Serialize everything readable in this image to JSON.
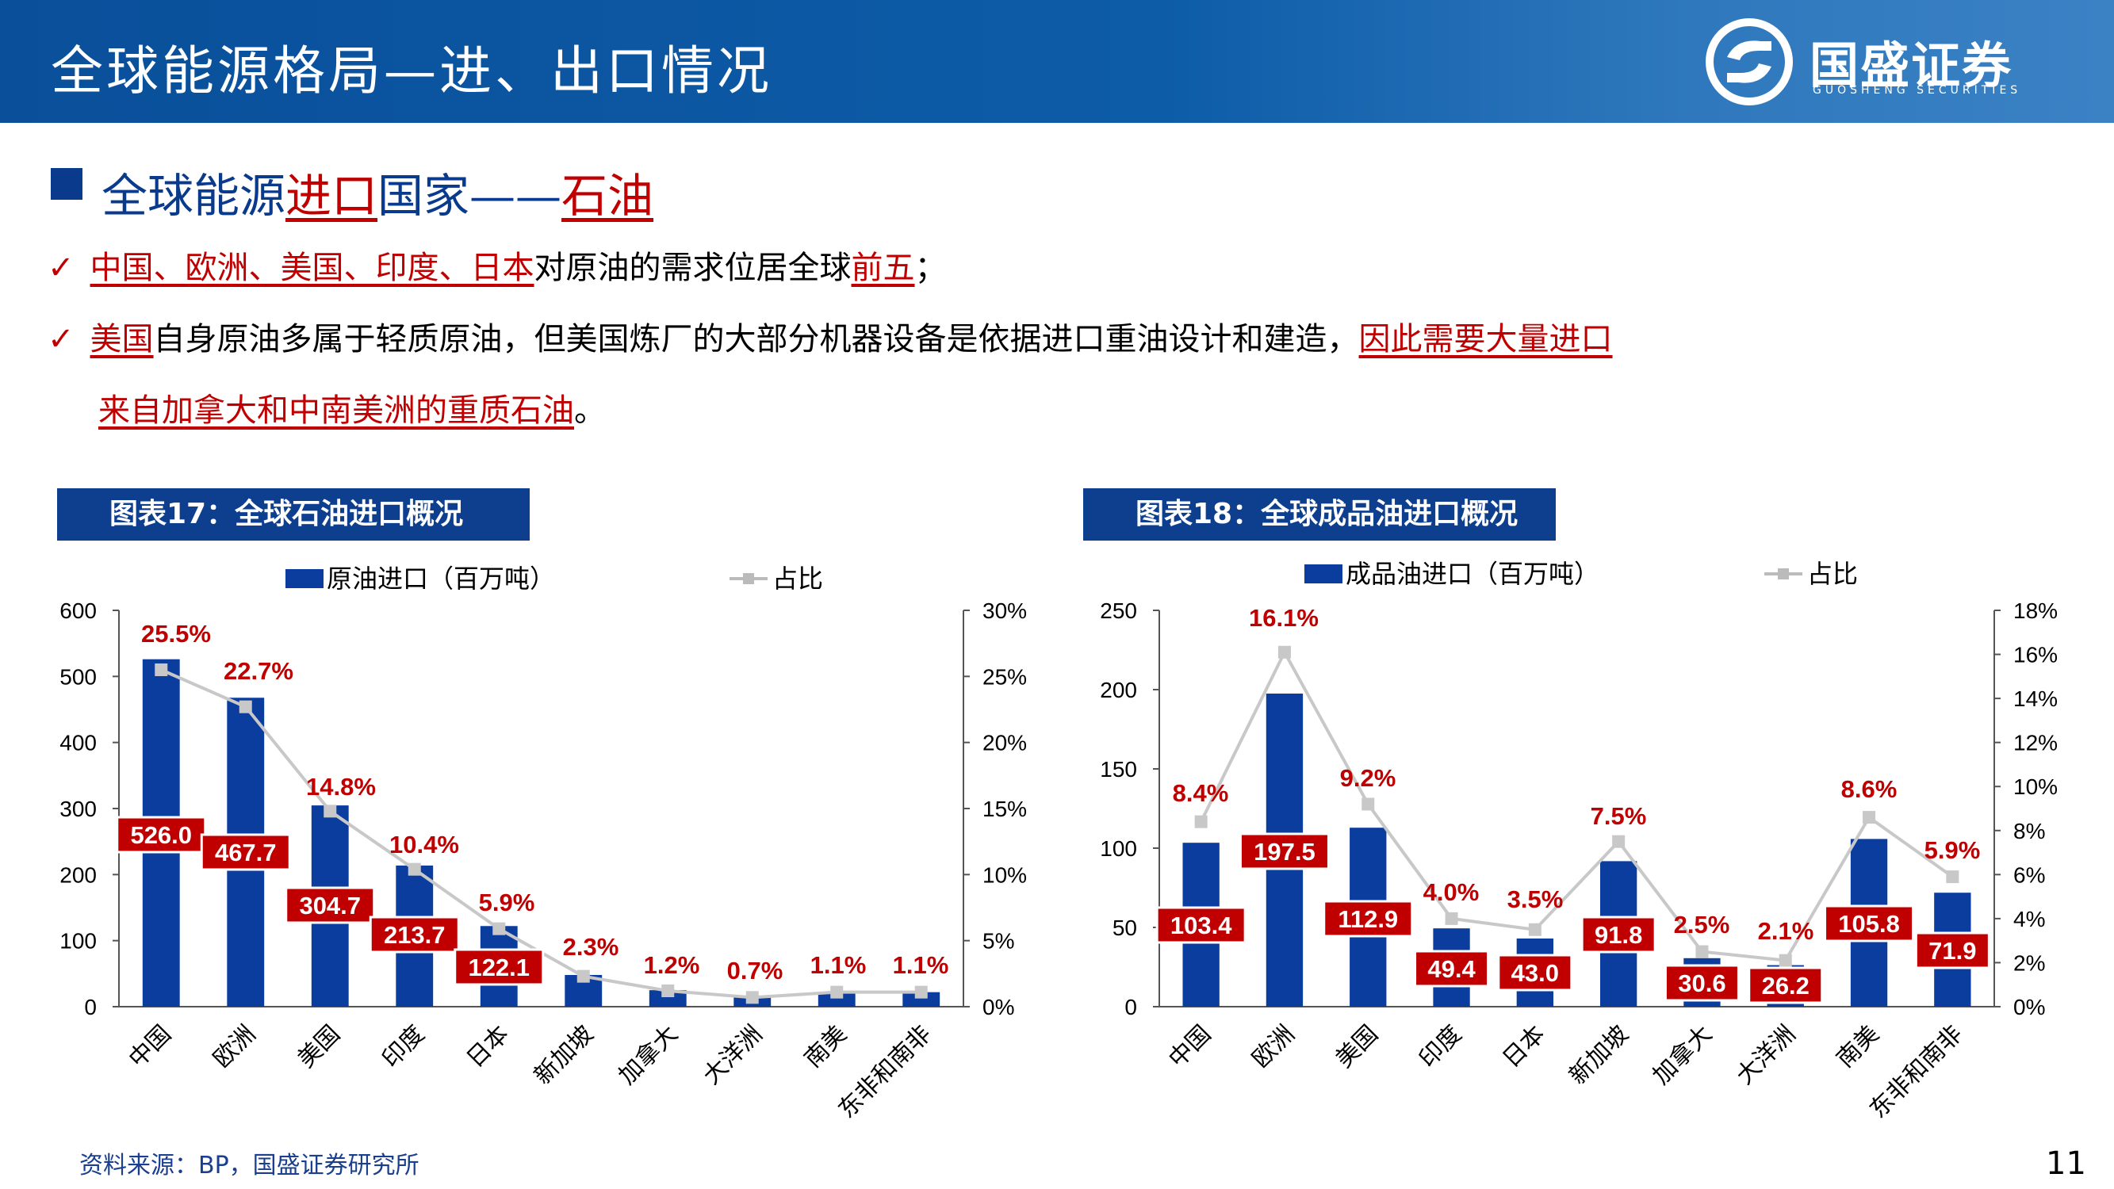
{
  "header": {
    "title": "全球能源格局—进、出口情况"
  },
  "logo": {
    "name": "国盛证券",
    "sub": "GUOSHENG SECURITIES"
  },
  "section": {
    "prefix": "全球能源",
    "highlight1": "进口",
    "middle": "国家——",
    "highlight2": "石油"
  },
  "bullets": {
    "b1": {
      "check": "✓",
      "red": "中国、欧洲、美国、印度、日本",
      "text": "对原油的需求位居全球",
      "red2": "前五",
      "end": "；"
    },
    "b2": {
      "check": "✓",
      "red": "美国",
      "text": "自身原油多属于轻质原油，但美国炼厂的大部分机器设备是依据进口重油设计和建造，",
      "red2": "因此需要大量进口"
    },
    "b3": {
      "red": "来自加拿大和中南美洲的重质石油",
      "end": "。"
    }
  },
  "charts": {
    "c17": {
      "title": "图表17：全球石油进口概况"
    },
    "c18": {
      "title": "图表18：全球成品油进口概况"
    }
  },
  "colors": {
    "bar": "#0b3d9e",
    "line": "#c8c8c8",
    "label_bg": "#c00000",
    "pct": "#c00000"
  },
  "chart_data": [
    {
      "type": "bar",
      "title": "图表17：全球石油进口概况",
      "categories": [
        "中国",
        "欧洲",
        "美国",
        "印度",
        "日本",
        "新加坡",
        "加拿大",
        "大洋洲",
        "南美",
        "东非和南非"
      ],
      "series": [
        {
          "name": "原油进口（百万吨）",
          "axis": "left",
          "values": [
            526.0,
            467.7,
            304.7,
            213.7,
            122.1,
            null,
            null,
            null,
            null,
            null
          ]
        },
        {
          "name": "占比",
          "axis": "right",
          "type": "line",
          "values": [
            25.5,
            22.7,
            14.8,
            10.4,
            5.9,
            2.3,
            1.2,
            0.7,
            1.1,
            1.1
          ]
        }
      ],
      "approx_bar_values": [
        526.0,
        467.7,
        304.7,
        213.7,
        122.1,
        48,
        25,
        14,
        21,
        22
      ],
      "value_labels": [
        "526.0",
        "467.7",
        "304.7",
        "213.7",
        "122.1",
        "",
        "",
        "",
        "",
        ""
      ],
      "pct_labels": [
        "25.5%",
        "22.7%",
        "14.8%",
        "10.4%",
        "5.9%",
        "2.3%",
        "1.2%",
        "0.7%",
        "1.1%",
        "1.1%"
      ],
      "ylim": [
        0,
        600
      ],
      "yticks": [
        "0",
        "100",
        "200",
        "300",
        "400",
        "500",
        "600"
      ],
      "y2lim": [
        0,
        30
      ],
      "y2ticks": [
        "0%",
        "5%",
        "10%",
        "15%",
        "20%",
        "25%",
        "30%"
      ],
      "legend_position": "top"
    },
    {
      "type": "bar",
      "title": "图表18：全球成品油进口概况",
      "categories": [
        "中国",
        "欧洲",
        "美国",
        "印度",
        "日本",
        "新加坡",
        "加拿大",
        "大洋洲",
        "南美",
        "东非和南非"
      ],
      "series": [
        {
          "name": "成品油进口（百万吨）",
          "axis": "left",
          "values": [
            103.4,
            197.5,
            112.9,
            49.4,
            43.0,
            91.8,
            30.6,
            26.2,
            105.8,
            71.9
          ]
        },
        {
          "name": "占比",
          "axis": "right",
          "type": "line",
          "values": [
            8.4,
            16.1,
            9.2,
            4.0,
            3.5,
            7.5,
            2.5,
            2.1,
            8.6,
            5.9
          ]
        }
      ],
      "value_labels": [
        "103.4",
        "197.5",
        "112.9",
        "49.4",
        "43.0",
        "91.8",
        "30.6",
        "26.2",
        "105.8",
        "71.9"
      ],
      "pct_labels": [
        "8.4%",
        "16.1%",
        "9.2%",
        "4.0%",
        "3.5%",
        "7.5%",
        "2.5%",
        "2.1%",
        "8.6%",
        "5.9%"
      ],
      "ylim": [
        0,
        250
      ],
      "yticks": [
        "0",
        "50",
        "100",
        "150",
        "200",
        "250"
      ],
      "y2lim": [
        0,
        18
      ],
      "y2ticks": [
        "0%",
        "2%",
        "4%",
        "6%",
        "8%",
        "10%",
        "12%",
        "14%",
        "16%",
        "18%"
      ],
      "legend_position": "top"
    }
  ],
  "footer": {
    "source": "资料来源：BP，国盛证券研究所",
    "page": "11"
  }
}
